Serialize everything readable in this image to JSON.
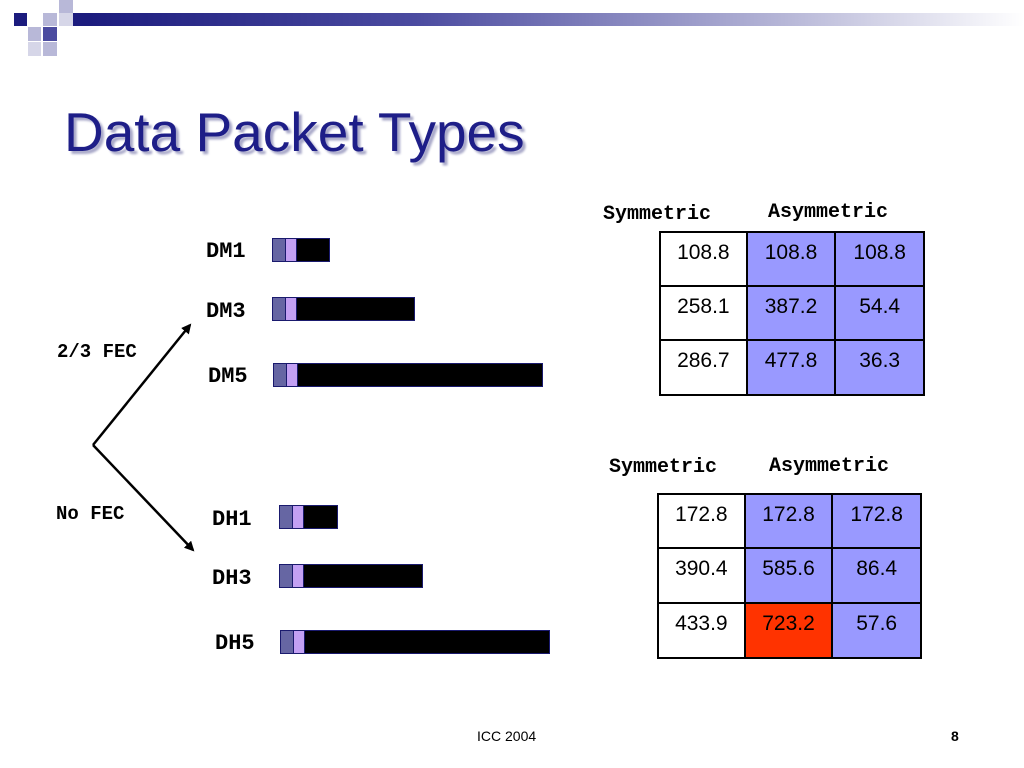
{
  "title": "Data Packet Types",
  "fec_branches": {
    "fec": "2/3 FEC",
    "nofec": "No FEC"
  },
  "dm_packets": [
    {
      "label": "DM1",
      "length_fraction": 0.12
    },
    {
      "label": "DM3",
      "length_fraction": 0.47
    },
    {
      "label": "DM5",
      "length_fraction": 1.0
    }
  ],
  "dh_packets": [
    {
      "label": "DH1",
      "length_fraction": 0.12
    },
    {
      "label": "DH3",
      "length_fraction": 0.47
    },
    {
      "label": "DH5",
      "length_fraction": 1.0
    }
  ],
  "dm_table": {
    "symmetric_label": "Symmetric",
    "asymmetric_label": "Asymmetric",
    "rows": [
      [
        "108.8",
        "108.8",
        "108.8"
      ],
      [
        "258.1",
        "387.2",
        "54.4"
      ],
      [
        "286.7",
        "477.8",
        "36.3"
      ]
    ]
  },
  "dh_table": {
    "symmetric_label": "Symmetric",
    "asymmetric_label": "Asymmetric",
    "rows": [
      [
        "172.8",
        "172.8",
        "172.8"
      ],
      [
        "390.4",
        "585.6",
        "86.4"
      ],
      [
        "433.9",
        "723.2",
        "57.6"
      ]
    ]
  },
  "colors": {
    "symmetric": "#ffffff",
    "asymmetric": "#9999ff",
    "highlight": "#ff3300",
    "title": "#1e1e88"
  },
  "footer": {
    "center": "ICC 2004",
    "page": "8"
  }
}
